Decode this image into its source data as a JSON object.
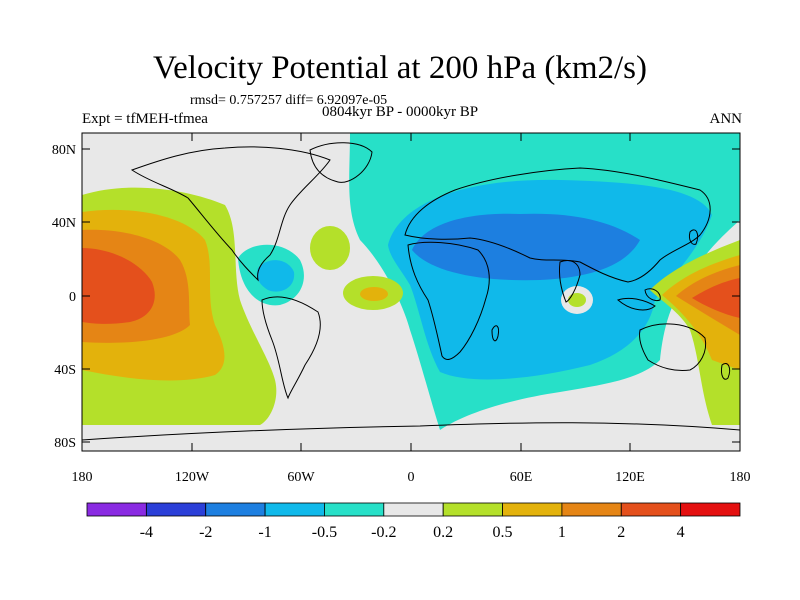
{
  "title": "Velocity Potential at 200 hPa (km2/s)",
  "stats": "rmsd= 0.757257 diff= 6.92097e-05",
  "left_label": "Expt = tfMEH-tfmea",
  "period": "0804kyr BP - 0000kyr BP",
  "season": "ANN",
  "lat_labels": [
    "80N",
    "40N",
    "0",
    "40S",
    "80S"
  ],
  "lon_labels": [
    "180",
    "120W",
    "60W",
    "0",
    "60E",
    "120E",
    "180"
  ],
  "colorbar": {
    "colors": [
      "#8a2be2",
      "#2b3fd8",
      "#1d7fe0",
      "#10b9ea",
      "#27e0c8",
      "#e8e8e8",
      "#b4e02a",
      "#e3b20c",
      "#e58515",
      "#e4501c",
      "#e41010"
    ],
    "labels": [
      "-4",
      "-2",
      "-1",
      "-0.5",
      "-0.2",
      "0.2",
      "0.5",
      "1",
      "2",
      "4"
    ]
  }
}
